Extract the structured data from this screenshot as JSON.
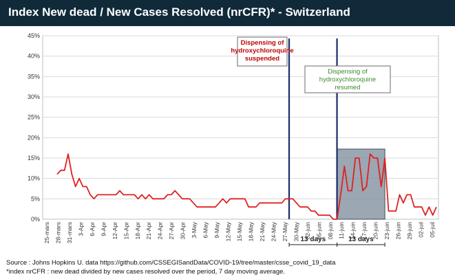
{
  "header": {
    "title": "Index New dead / New Cases Resolved (nrCFR)* - Switzerland",
    "bar_color": "#102a3a"
  },
  "chart_data": {
    "type": "line",
    "ylim": [
      0,
      45
    ],
    "y_ticks": [
      "0%",
      "5%",
      "10%",
      "15%",
      "20%",
      "25%",
      "30%",
      "35%",
      "40%",
      "45%"
    ],
    "x_ticks": [
      "25-mars",
      "28-mars",
      "31-mars",
      "3-Apr",
      "6-Apr",
      "9-Apr",
      "12-Apr",
      "15-Apr",
      "18-Apr",
      "21-Apr",
      "24-Apr",
      "27-Apr",
      "30-Apr",
      "3-May",
      "6-May",
      "9-May",
      "12-May",
      "15-May",
      "18-May",
      "21-May",
      "24-May",
      "27-May",
      "30-May",
      "02-juin",
      "05-juin",
      "08-juin",
      "11-juin",
      "14-juin",
      "17-juin",
      "20-juin",
      "23-juin",
      "26-juin",
      "29-juin",
      "02-juil",
      "05-juil"
    ],
    "grid": true,
    "series": [
      {
        "color": "#e02020",
        "values": [
          11,
          12,
          12,
          16,
          11,
          8,
          10,
          8,
          8,
          6,
          5,
          6,
          6,
          6,
          6,
          6,
          6,
          7,
          6,
          6,
          6,
          6,
          5,
          6,
          5,
          6,
          5,
          5,
          5,
          5,
          6,
          6,
          7,
          6,
          5,
          5,
          5,
          4,
          3,
          3,
          3,
          3,
          3,
          3,
          4,
          5,
          4,
          5,
          5,
          5,
          5,
          5,
          3,
          3,
          3,
          4,
          4,
          4,
          4,
          4,
          4,
          4,
          5,
          5,
          5,
          4,
          3,
          3,
          3,
          2,
          2,
          1,
          1,
          1,
          1,
          0,
          0,
          6,
          13,
          7,
          7,
          15,
          15,
          7,
          8,
          16,
          15,
          15,
          8,
          15,
          2,
          2,
          2,
          6,
          4,
          6,
          6,
          3,
          3,
          3,
          1,
          3,
          1,
          3
        ]
      }
    ],
    "annotations": [
      {
        "text": "Dispensing of hydroxychloroquine suspended",
        "lines": [
          "Dispensing of",
          "hydroxychloroquine",
          "suspended"
        ],
        "color": "#c00000",
        "date_index": 63
      },
      {
        "text": "Dispensing of hydroxychloroquine resumed",
        "lines": [
          "Dispensing of",
          "hydroxychloroquine",
          "resumed"
        ],
        "color": "#3a8a2a",
        "date_index": 76
      },
      {
        "text": "13 days",
        "from_index": 63,
        "to_index": 76
      },
      {
        "text": "13 days",
        "from_index": 76,
        "to_index": 89
      }
    ],
    "shaded_range": [
      76,
      89
    ],
    "vline_color": "#1a2a6c"
  },
  "footer": {
    "source": "Source : Johns Hopkins U. data https://github.com/CSSEGISandData/COVID-19/tree/master/csse_covid_19_data",
    "note": "*index nrCFR : new dead divided by new cases resolved over the period, 7 day moving average."
  }
}
